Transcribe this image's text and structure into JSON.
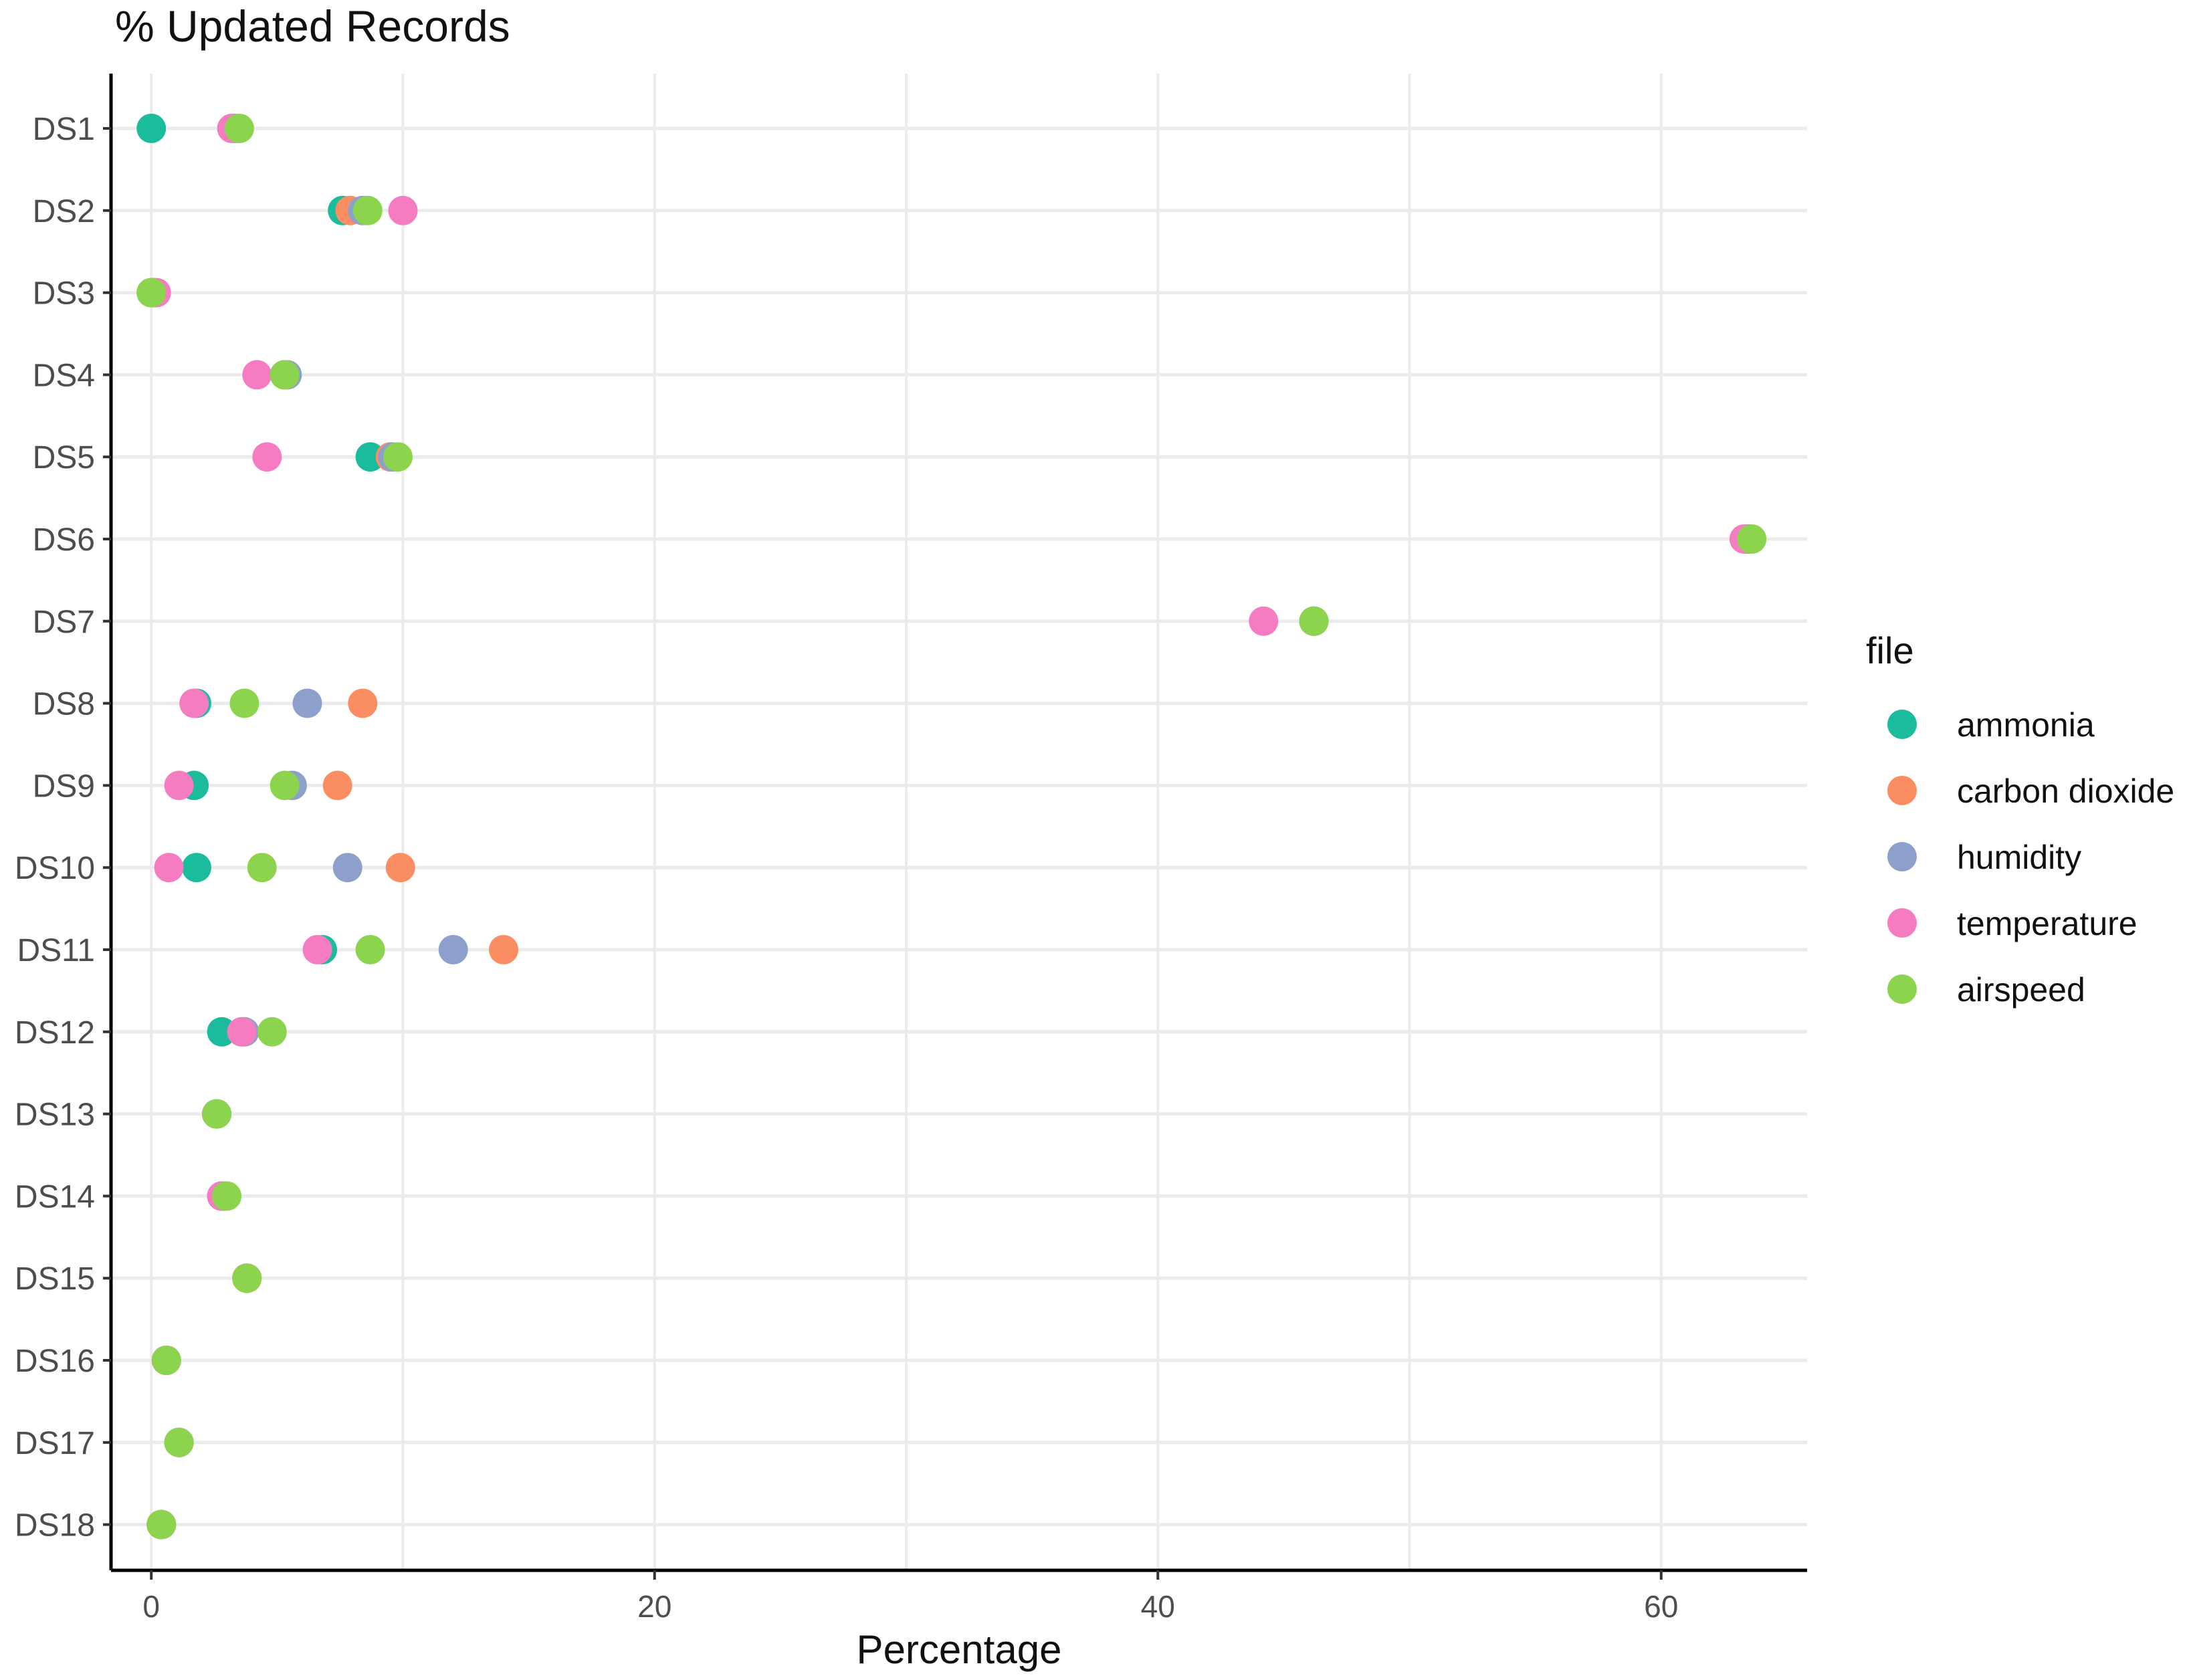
{
  "chart_data": {
    "type": "scatter",
    "title": "% Updated Records",
    "xlabel": "Percentage",
    "ylabel": "",
    "xlim": [
      -1.6,
      65.8
    ],
    "x_ticks": [
      0,
      20,
      40,
      60
    ],
    "x_tick_labels": [
      "0",
      "20",
      "40",
      "60"
    ],
    "categories": [
      "DS1",
      "DS2",
      "DS3",
      "DS4",
      "DS5",
      "DS6",
      "DS7",
      "DS8",
      "DS9",
      "DS10",
      "DS11",
      "DS12",
      "DS13",
      "DS14",
      "DS15",
      "DS16",
      "DS17",
      "DS18"
    ],
    "grid": true,
    "legend": {
      "title": "file",
      "placement": "right"
    },
    "series": [
      {
        "name": "ammonia",
        "color": "#1ABC9C",
        "values": [
          0.0,
          7.6,
          0.0,
          5.3,
          8.7,
          63.4,
          46.2,
          1.8,
          1.7,
          1.8,
          6.8,
          2.8,
          2.6,
          2.8,
          3.8,
          0.6,
          1.1,
          0.4
        ]
      },
      {
        "name": "carbon dioxide",
        "color": "#FB8D62",
        "values": [
          3.4,
          7.9,
          0.1,
          5.3,
          9.5,
          63.4,
          46.2,
          8.4,
          7.4,
          9.9,
          14.0,
          3.6,
          2.6,
          2.9,
          3.8,
          0.6,
          1.1,
          0.4
        ]
      },
      {
        "name": "humidity",
        "color": "#8DA0CB",
        "values": [
          3.3,
          8.4,
          0.1,
          5.4,
          9.6,
          63.5,
          46.2,
          6.2,
          5.6,
          7.8,
          12.0,
          3.7,
          2.6,
          2.8,
          3.8,
          0.6,
          1.1,
          0.4
        ]
      },
      {
        "name": "temperature",
        "color": "#F67CC1",
        "values": [
          3.2,
          10.0,
          0.2,
          4.2,
          4.6,
          63.3,
          44.2,
          1.7,
          1.1,
          0.7,
          6.6,
          3.6,
          2.6,
          2.8,
          3.8,
          0.6,
          1.1,
          0.4
        ]
      },
      {
        "name": "airspeed",
        "color": "#8CD44E",
        "values": [
          3.5,
          8.6,
          0.0,
          5.3,
          9.8,
          63.6,
          46.2,
          3.7,
          5.3,
          4.4,
          8.7,
          4.8,
          2.6,
          3.0,
          3.8,
          0.6,
          1.1,
          0.4
        ]
      }
    ]
  }
}
